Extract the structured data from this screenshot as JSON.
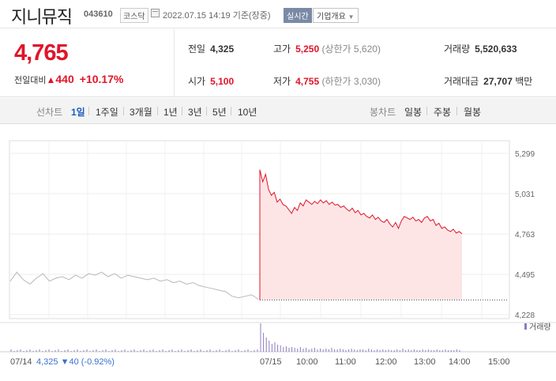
{
  "header": {
    "name": "지니뮤직",
    "code": "043610",
    "market": "코스닥",
    "date": "2022.07.15 14:19 기준(장중)",
    "realtime": "실시간",
    "company": "기업개요"
  },
  "summary": {
    "price": "4,765",
    "diff_label": "전일대비",
    "diff_value": "440",
    "diff_rate": "+10.17%",
    "stats": {
      "prev_label": "전일",
      "prev_value": "4,325",
      "high_label": "고가",
      "high_value": "5,250",
      "high_sub": "(상한가 5,620)",
      "volume_label": "거래량",
      "volume_value": "5,520,633",
      "open_label": "시가",
      "open_value": "5,100",
      "low_label": "저가",
      "low_value": "4,755",
      "low_sub": "(하한가 3,030)",
      "amount_label": "거래대금",
      "amount_value": "27,707",
      "amount_unit": "백만"
    }
  },
  "tabs": {
    "line_label": "선차트",
    "periods": [
      "1일",
      "1주일",
      "3개월",
      "1년",
      "3년",
      "5년",
      "10년"
    ],
    "active_period": "1일",
    "candle_label": "봉차트",
    "candles": [
      "일봉",
      "주봉",
      "월봉"
    ]
  },
  "chart_data": {
    "type": "line",
    "y_ticks": [
      "5,299",
      "5,031",
      "4,763",
      "4,495",
      "4,228"
    ],
    "ylim": [
      4228,
      5299
    ],
    "x_labels": [
      "07/14",
      "07/15",
      "10:00",
      "11:00",
      "12:00",
      "13:00",
      "14:00",
      "15:00"
    ],
    "prev_day_caption": {
      "date": "07/14",
      "price": "4,325",
      "change": "▼40",
      "rate": "(-0.92%)"
    },
    "volume_legend": "거래량",
    "prev_close": 4325,
    "today_series": [
      5190,
      5110,
      5160,
      5060,
      5020,
      5040,
      4975,
      4995,
      4960,
      4950,
      4925,
      4900,
      4940,
      4920,
      4970,
      4950,
      4990,
      4975,
      4960,
      4980,
      4965,
      4990,
      4970,
      4985,
      4960,
      4975,
      4955,
      4960,
      4940,
      4950,
      4930,
      4915,
      4935,
      4905,
      4920,
      4890,
      4900,
      4880,
      4870,
      4890,
      4860,
      4875,
      4850,
      4840,
      4860,
      4830,
      4810,
      4840,
      4800,
      4850,
      4880,
      4870,
      4860,
      4875,
      4850,
      4860,
      4840,
      4870,
      4880,
      4850,
      4860,
      4820,
      4835,
      4800,
      4810,
      4790,
      4780,
      4795,
      4770,
      4780,
      4765
    ],
    "prev_series": [
      4450,
      4510,
      4460,
      4430,
      4470,
      4500,
      4450,
      4470,
      4480,
      4460,
      4490,
      4470,
      4500,
      4490,
      4510,
      4480,
      4500,
      4470,
      4490,
      4480,
      4470,
      4460,
      4470,
      4450,
      4460,
      4440,
      4450,
      4430,
      4440,
      4420,
      4410,
      4400,
      4390,
      4380,
      4350,
      4340,
      4350,
      4360,
      4330
    ]
  }
}
